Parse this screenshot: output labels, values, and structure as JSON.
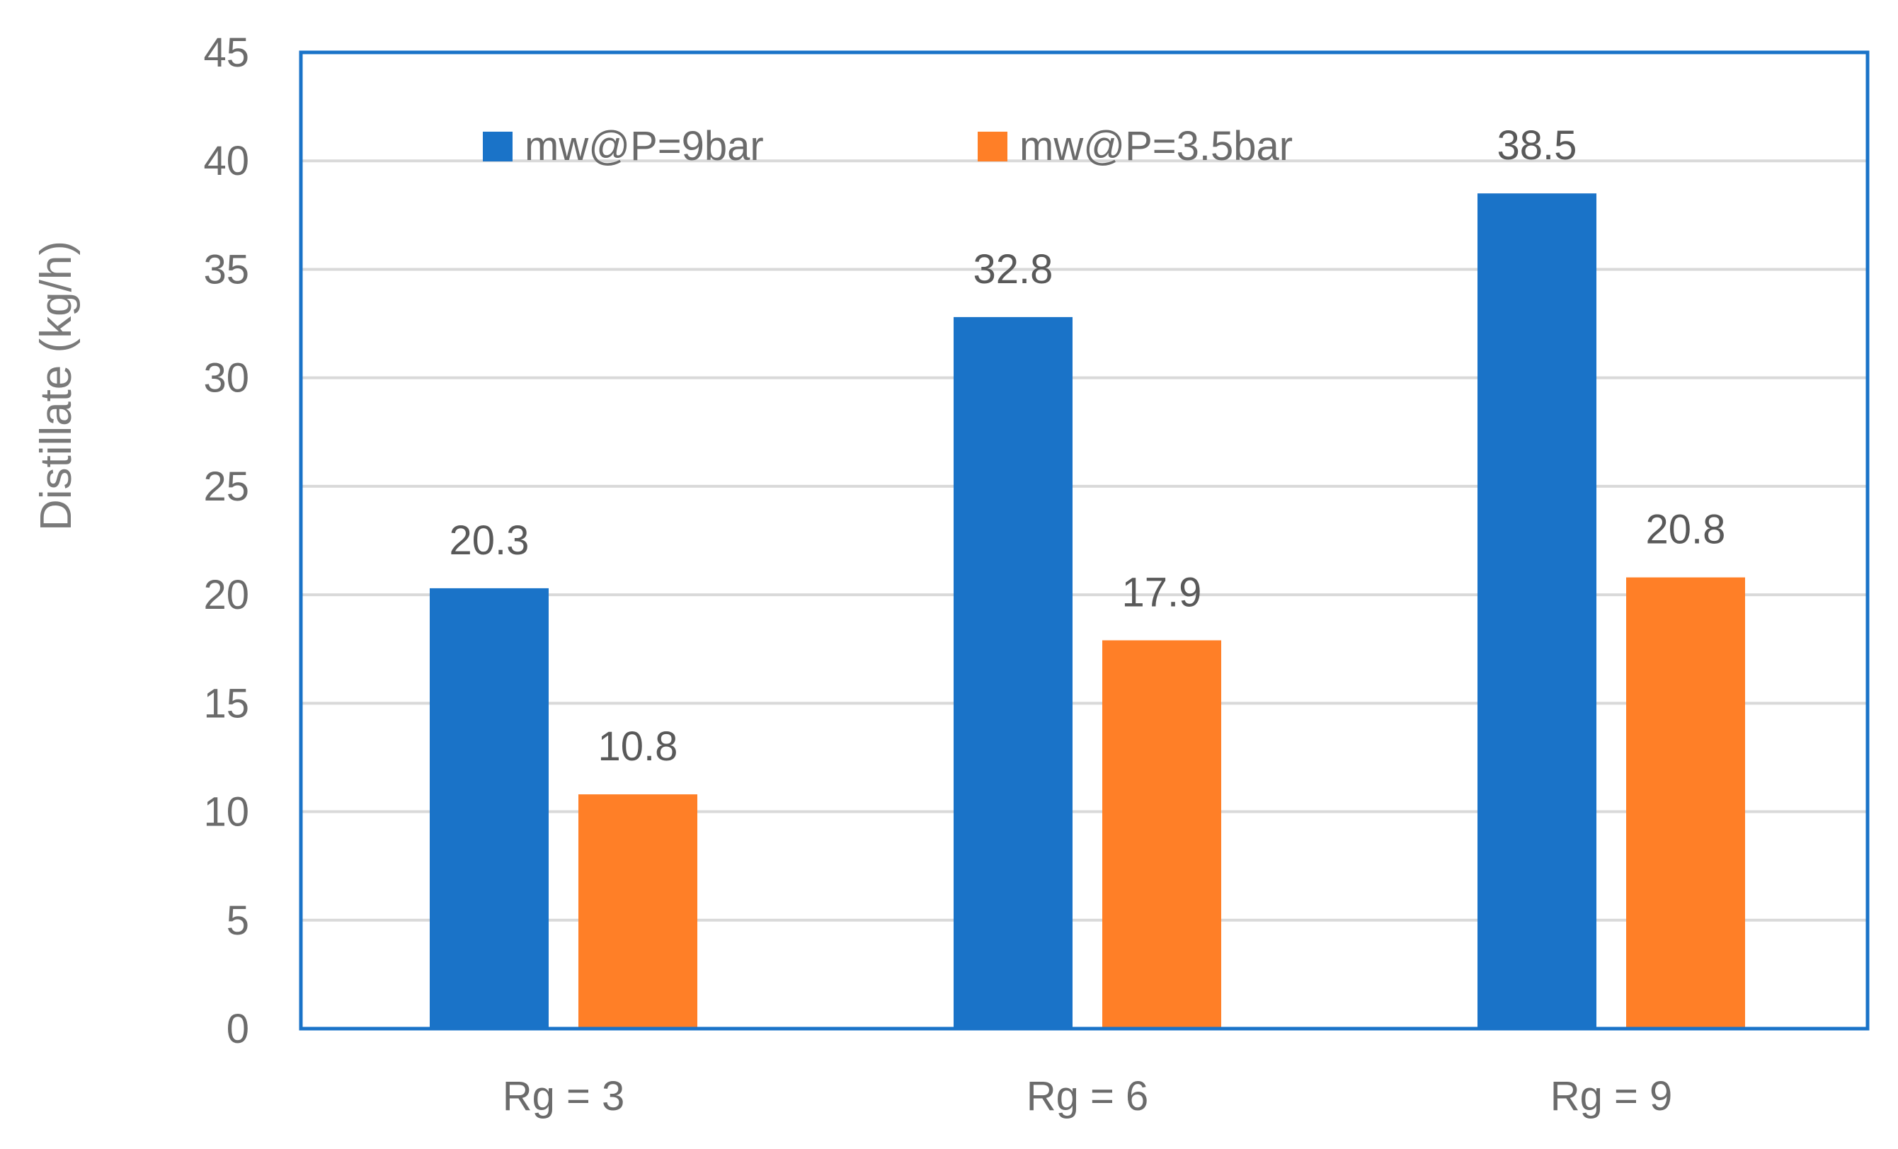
{
  "chart_data": {
    "type": "bar",
    "title": "",
    "xlabel": "",
    "ylabel": "Distillate (kg/h)",
    "categories": [
      "Rg = 3",
      "Rg = 6",
      "Rg = 9"
    ],
    "series": [
      {
        "name": "mw@P=9bar",
        "color": "#1a73c8",
        "values": [
          20.3,
          32.8,
          38.5
        ],
        "labels": [
          "20.3",
          "32.8",
          "38.5"
        ]
      },
      {
        "name": "mw@P=3.5bar",
        "color": "#ff7f27",
        "values": [
          10.8,
          17.9,
          20.8
        ],
        "labels": [
          "10.8",
          "17.9",
          "20.8"
        ]
      }
    ],
    "ylim": [
      0,
      45
    ],
    "yticks": [
      0,
      5,
      10,
      15,
      20,
      25,
      30,
      35,
      40,
      45
    ],
    "ytick_labels": [
      "0",
      "5",
      "10",
      "15",
      "20",
      "25",
      "30",
      "35",
      "40",
      "45"
    ],
    "grid": true,
    "legend_position": "top-inside",
    "plot_border_color": "#1a73c8"
  }
}
